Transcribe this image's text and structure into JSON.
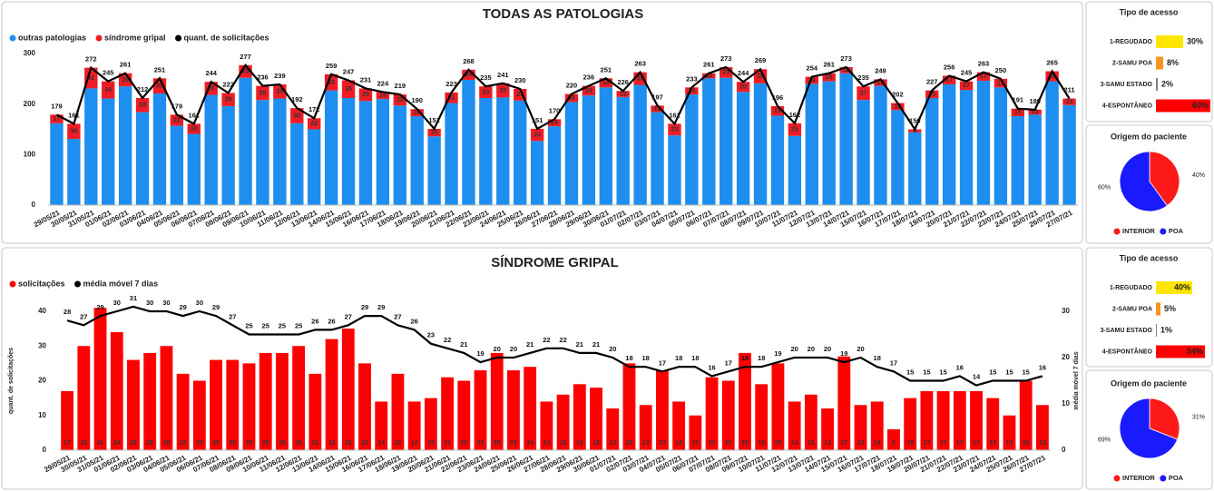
{
  "chart_data": [
    {
      "type": "bar",
      "stacked": true,
      "title": "TODAS AS PATOLOGIAS",
      "categories": [
        "29/05/21",
        "30/05/21",
        "31/05/21",
        "01/06/21",
        "02/06/21",
        "03/06/21",
        "04/06/21",
        "05/06/21",
        "06/06/21",
        "07/06/21",
        "08/06/21",
        "09/06/21",
        "10/06/21",
        "11/06/21",
        "12/06/21",
        "13/06/21",
        "14/06/21",
        "15/06/21",
        "16/06/21",
        "17/06/21",
        "18/06/21",
        "19/06/21",
        "20/06/21",
        "21/06/21",
        "22/06/21",
        "23/06/21",
        "24/06/21",
        "25/06/21",
        "26/06/21",
        "27/06/21",
        "28/06/21",
        "29/06/21",
        "30/06/21",
        "01/07/21",
        "02/07/21",
        "03/07/21",
        "04/07/21",
        "05/07/21",
        "06/07/21",
        "07/07/21",
        "08/07/21",
        "09/07/21",
        "10/07/21",
        "11/07/21",
        "12/07/21",
        "13/07/21",
        "14/07/21",
        "15/07/21",
        "16/07/21",
        "17/07/21",
        "18/07/21",
        "19/07/21",
        "20/07/21",
        "21/07/21",
        "22/07/21",
        "23/07/21",
        "24/07/21",
        "25/07/21",
        "26/07/21",
        "27/07/21"
      ],
      "series": [
        {
          "name": "outras patologias",
          "type": "bar",
          "color": "#1e8ff0",
          "values": [
            162,
            131,
            231,
            211,
            235,
            184,
            221,
            157,
            141,
            218,
            196,
            252,
            208,
            211,
            162,
            150,
            227,
            212,
            206,
            210,
            197,
            176,
            136,
            202,
            248,
            212,
            213,
            207,
            127,
            156,
            204,
            217,
            233,
            214,
            238,
            184,
            138,
            219,
            251,
            252,
            224,
            241,
            177,
            137,
            240,
            245,
            261,
            208,
            236,
            188,
            144,
            212,
            239,
            228,
            246,
            233,
            176,
            179,
            245,
            198
          ]
        },
        {
          "name": "síndrome gripal",
          "type": "bar",
          "color": "#ee1c25",
          "show_labels": true,
          "values": [
            17,
            30,
            41,
            34,
            26,
            28,
            30,
            22,
            20,
            26,
            26,
            25,
            28,
            28,
            30,
            22,
            32,
            35,
            25,
            14,
            22,
            14,
            15,
            21,
            20,
            23,
            28,
            23,
            24,
            14,
            16,
            19,
            18,
            12,
            25,
            13,
            23,
            14,
            10,
            21,
            20,
            28,
            19,
            25,
            14,
            16,
            12,
            27,
            13,
            14,
            6,
            15,
            17,
            17,
            17,
            17,
            15,
            10,
            20,
            13
          ]
        },
        {
          "name": "quant. de solicitações",
          "type": "line",
          "color": "#000000",
          "show_labels": true,
          "values": [
            179,
            161,
            272,
            245,
            261,
            212,
            251,
            179,
            161,
            244,
            222,
            277,
            236,
            239,
            192,
            172,
            259,
            247,
            231,
            224,
            219,
            190,
            151,
            223,
            268,
            235,
            241,
            230,
            151,
            170,
            220,
            236,
            251,
            226,
            263,
            197,
            161,
            233,
            261,
            273,
            244,
            269,
            196,
            162,
            254,
            261,
            273,
            235,
            249,
            202,
            150,
            227,
            256,
            245,
            263,
            250,
            191,
            189,
            265,
            211
          ]
        }
      ],
      "ylim": [
        0,
        300
      ],
      "yticks": [
        0,
        100,
        200,
        300
      ],
      "legend": "top-left"
    },
    {
      "type": "hbar",
      "title": "Tipo de acesso",
      "categories": [
        "1-REGUDADO",
        "2-SAMU POA",
        "3-SAMU ESTADO",
        "4-ESPONTÂNEO"
      ],
      "values": [
        30,
        8,
        2,
        60
      ],
      "value_labels": [
        "30%",
        "8%",
        "2%",
        "60%"
      ],
      "colors": [
        "#ffe600",
        "#f7941d",
        "#808080",
        "#ff0000"
      ]
    },
    {
      "type": "pie",
      "title": "Origem do paciente",
      "labels": [
        "INTERIOR",
        "POA"
      ],
      "values": [
        40,
        60
      ],
      "value_labels": [
        "40%",
        "60%"
      ],
      "colors": [
        "#ff1a1a",
        "#1a1aff"
      ]
    },
    {
      "type": "bar",
      "stacked": false,
      "title": "SÍNDROME GRIPAL",
      "categories": [
        "29/05/21",
        "30/05/21",
        "31/05/21",
        "01/06/21",
        "02/06/21",
        "03/06/21",
        "04/06/21",
        "05/06/21",
        "06/06/21",
        "07/06/21",
        "08/06/21",
        "09/06/21",
        "10/06/21",
        "11/06/21",
        "12/06/21",
        "13/06/21",
        "14/06/21",
        "15/06/21",
        "16/06/21",
        "17/06/21",
        "18/06/21",
        "19/06/21",
        "20/06/21",
        "21/06/21",
        "22/06/21",
        "23/06/21",
        "24/06/21",
        "25/06/21",
        "26/06/21",
        "27/06/21",
        "28/06/21",
        "29/06/21",
        "30/06/21",
        "01/07/21",
        "02/07/21",
        "03/07/21",
        "04/07/21",
        "05/07/21",
        "06/07/21",
        "07/07/21",
        "08/07/21",
        "09/07/21",
        "10/07/21",
        "11/07/21",
        "12/07/21",
        "13/07/21",
        "14/07/21",
        "15/07/21",
        "16/07/21",
        "17/07/21",
        "18/07/21",
        "19/07/21",
        "20/07/21",
        "21/07/21",
        "22/07/21",
        "23/07/21",
        "24/07/21",
        "25/07/21",
        "26/07/21",
        "27/07/21"
      ],
      "series": [
        {
          "name": "solicitações",
          "type": "bar",
          "color": "#ff0000",
          "show_labels": true,
          "values": [
            17,
            30,
            41,
            34,
            26,
            28,
            30,
            22,
            20,
            26,
            26,
            25,
            28,
            28,
            30,
            22,
            32,
            35,
            25,
            14,
            22,
            14,
            15,
            21,
            20,
            23,
            28,
            23,
            24,
            14,
            16,
            19,
            18,
            12,
            25,
            13,
            23,
            14,
            10,
            21,
            20,
            28,
            19,
            25,
            14,
            16,
            12,
            27,
            13,
            14,
            6,
            15,
            17,
            17,
            17,
            17,
            15,
            10,
            20,
            13
          ]
        },
        {
          "name": "média móvel 7 dias",
          "type": "line",
          "axis": "y2",
          "color": "#000000",
          "show_labels": true,
          "values": [
            28,
            27,
            29,
            30,
            31,
            30,
            30,
            29,
            30,
            29,
            27,
            25,
            25,
            25,
            25,
            26,
            26,
            27,
            29,
            29,
            27,
            26,
            23,
            22,
            21,
            19,
            20,
            20,
            21,
            22,
            22,
            21,
            21,
            20,
            18,
            18,
            17,
            18,
            18,
            16,
            17,
            18,
            18,
            19,
            20,
            20,
            20,
            19,
            20,
            18,
            17,
            15,
            15,
            15,
            16,
            14,
            15,
            15,
            15,
            16
          ]
        }
      ],
      "ylabel": "quant. de solicitações",
      "y2label": "média móvel 7 dias",
      "ylim": [
        0,
        40
      ],
      "yticks": [
        0,
        10,
        20,
        30,
        40
      ],
      "y2lim": [
        0,
        30
      ],
      "y2ticks": [
        0,
        10,
        20,
        30
      ],
      "legend": "top-left"
    },
    {
      "type": "hbar",
      "title": "Tipo de acesso",
      "categories": [
        "1-REGUDADO",
        "2-SAMU POA",
        "3-SAMU ESTADO",
        "4-ESPONTÂNEO"
      ],
      "values": [
        40,
        5,
        1,
        54
      ],
      "value_labels": [
        "40%",
        "5%",
        "1%",
        "54%"
      ],
      "colors": [
        "#ffe600",
        "#f7941d",
        "#808080",
        "#ff0000"
      ]
    },
    {
      "type": "pie",
      "title": "Origem do paciente",
      "labels": [
        "INTERIOR",
        "POA"
      ],
      "values": [
        31,
        69
      ],
      "value_labels": [
        "31%",
        "69%"
      ],
      "colors": [
        "#ff1a1a",
        "#1a1aff"
      ]
    }
  ]
}
